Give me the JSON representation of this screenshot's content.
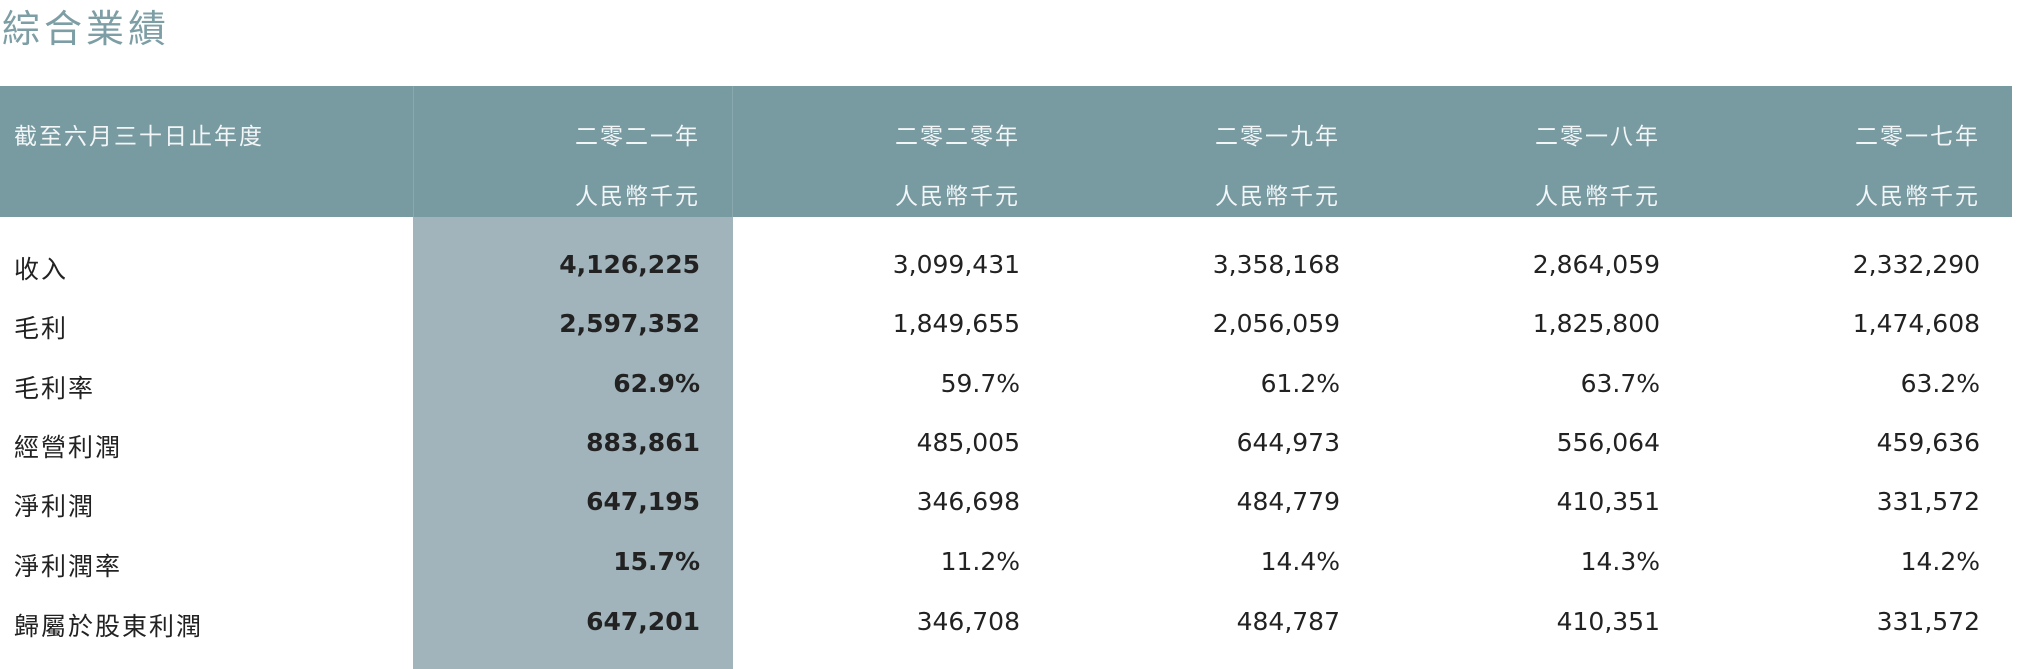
{
  "title": "綜合業績",
  "header": {
    "label": "截至六月三十日止年度",
    "columns": [
      {
        "year": "二零二一年",
        "unit": "人民幣千元"
      },
      {
        "year": "二零二零年",
        "unit": "人民幣千元"
      },
      {
        "year": "二零一九年",
        "unit": "人民幣千元"
      },
      {
        "year": "二零一八年",
        "unit": "人民幣千元"
      },
      {
        "year": "二零一七年",
        "unit": "人民幣千元"
      }
    ]
  },
  "rows": [
    {
      "label": "收入",
      "values": [
        "4,126,225",
        "3,099,431",
        "3,358,168",
        "2,864,059",
        "2,332,290"
      ]
    },
    {
      "label": "毛利",
      "values": [
        "2,597,352",
        "1,849,655",
        "2,056,059",
        "1,825,800",
        "1,474,608"
      ]
    },
    {
      "label": "毛利率",
      "values": [
        "62.9%",
        "59.7%",
        "61.2%",
        "63.7%",
        "63.2%"
      ]
    },
    {
      "label": "經營利潤",
      "values": [
        "883,861",
        "485,005",
        "644,973",
        "556,064",
        "459,636"
      ]
    },
    {
      "label": "淨利潤",
      "values": [
        "647,195",
        "346,698",
        "484,779",
        "410,351",
        "331,572"
      ]
    },
    {
      "label": "淨利潤率",
      "values": [
        "15.7%",
        "11.2%",
        "14.4%",
        "14.3%",
        "14.2%"
      ]
    },
    {
      "label": "歸屬於股東利潤",
      "values": [
        "647,201",
        "346,708",
        "484,787",
        "410,351",
        "331,572"
      ]
    }
  ],
  "colors": {
    "header": "#789aa1",
    "highlight": "#a2b4bb",
    "title": "#7d9ea5"
  }
}
